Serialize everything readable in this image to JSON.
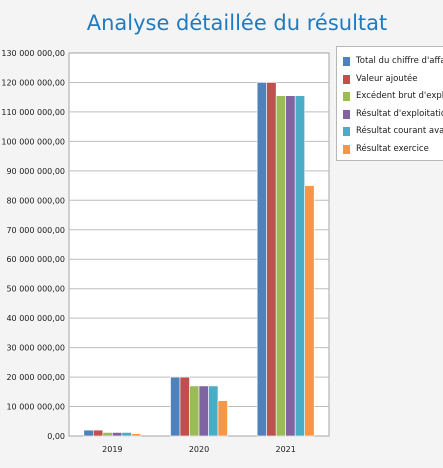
{
  "chart_data": {
    "type": "bar",
    "title": "Analyse détaillée du résultat",
    "categories": [
      "2019",
      "2020",
      "2021"
    ],
    "ylim": [
      0,
      130000000
    ],
    "yticks": [
      "0,00",
      "10 000 000,00",
      "20 000 000,00",
      "30 000 000,00",
      "40 000 000,00",
      "50 000 000,00",
      "60 000 000,00",
      "70 000 000,00",
      "80 000 000,00",
      "90 000 000,00",
      "100 000 000,00",
      "110 000 000,00",
      "120 000 000,00",
      "130 000 000,00"
    ],
    "grid": true,
    "legend_position": "top-right",
    "series": [
      {
        "name": "Total du chiffre d'affaire",
        "color": "#4f81bd",
        "values": [
          2000000,
          20000000,
          120000000
        ]
      },
      {
        "name": "Valeur ajoutée",
        "color": "#c0504d",
        "values": [
          2000000,
          20000000,
          120000000
        ]
      },
      {
        "name": "Excédent brut d'exploitation",
        "color": "#9bbb59",
        "values": [
          1200000,
          17000000,
          115500000
        ]
      },
      {
        "name": "Résultat d'exploitation",
        "color": "#8064a2",
        "values": [
          1200000,
          17000000,
          115500000
        ]
      },
      {
        "name": "Résultat courant avant impôts",
        "color": "#4bacc6",
        "values": [
          1200000,
          17000000,
          115500000
        ]
      },
      {
        "name": "Résultat exercice",
        "color": "#f79646",
        "values": [
          800000,
          12000000,
          85000000
        ]
      }
    ]
  }
}
